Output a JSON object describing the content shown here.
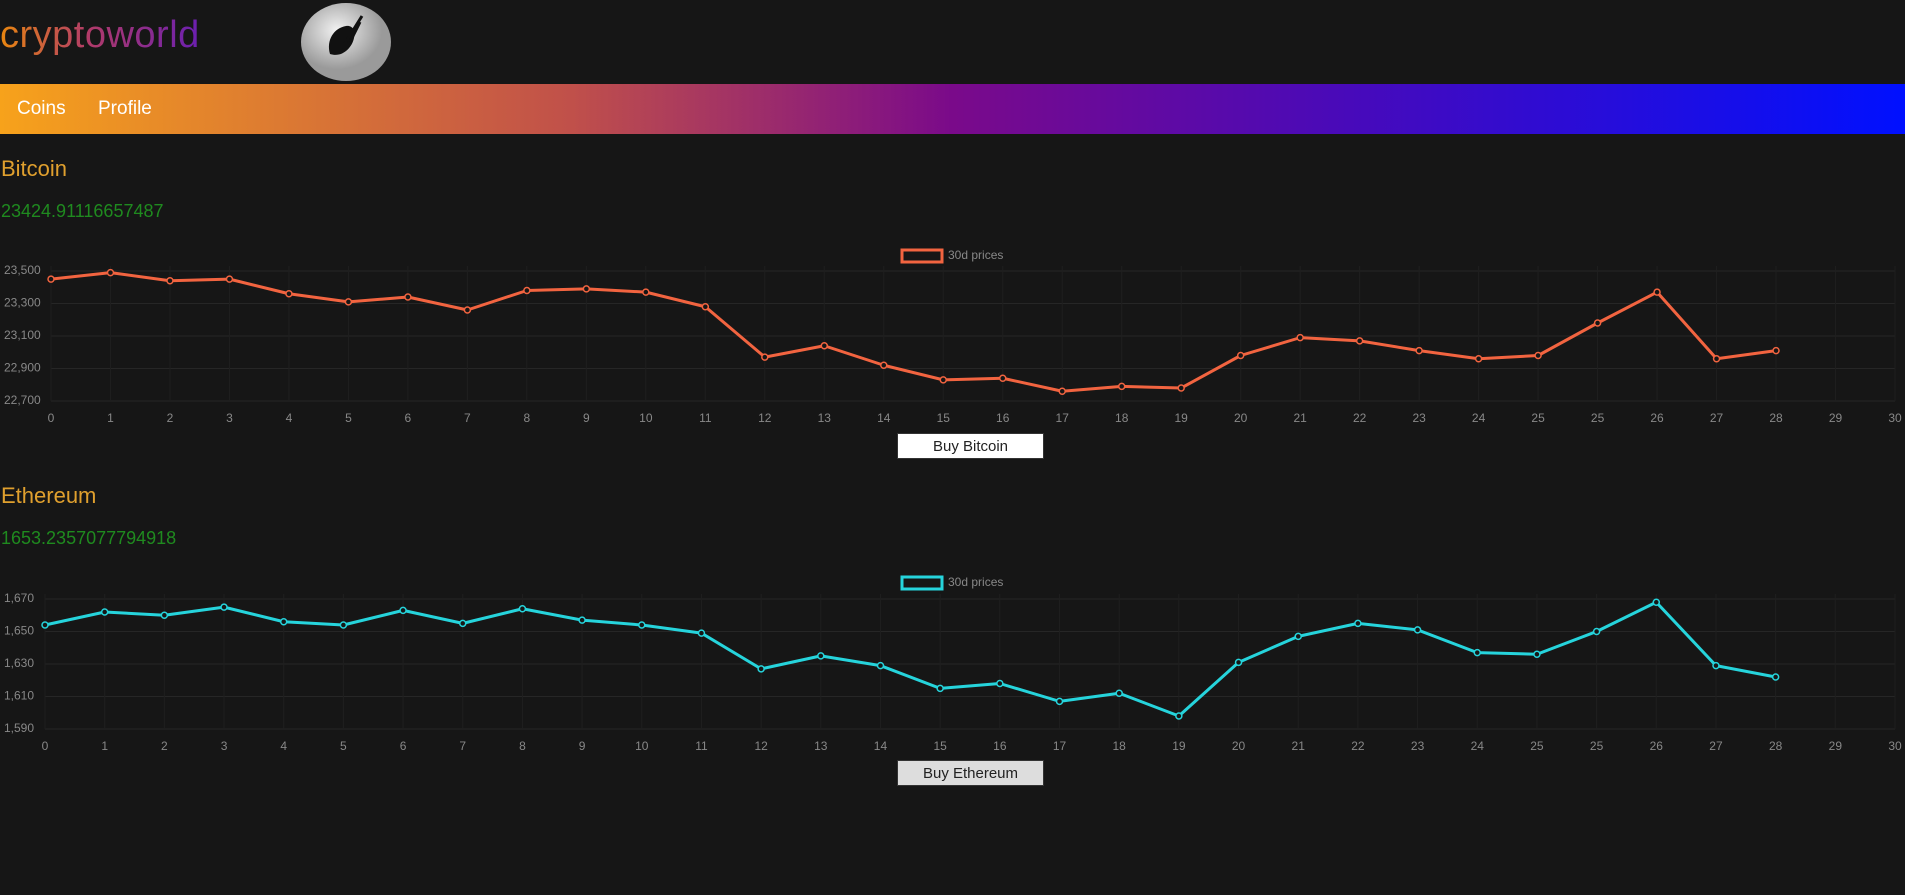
{
  "header": {
    "brand": "cryptoworld"
  },
  "nav": [
    "Coins",
    "Profile"
  ],
  "coins": [
    {
      "name": "Bitcoin",
      "price": "23424.91116657487",
      "button": "Buy Bitcoin"
    },
    {
      "name": "Ethereum",
      "price": "1653.2357077794918",
      "button": "Buy Ethereum"
    }
  ],
  "chart_data": [
    {
      "type": "line",
      "categories": [
        0,
        1,
        2,
        3,
        4,
        5,
        6,
        7,
        8,
        9,
        10,
        11,
        12,
        13,
        14,
        15,
        16,
        17,
        18,
        19,
        20,
        21,
        22,
        23,
        24,
        25,
        25,
        26,
        27,
        28,
        29,
        30
      ],
      "series": [
        {
          "name": "30d prices",
          "color": "#f26440",
          "values": [
            23450,
            23490,
            23440,
            23450,
            23360,
            23310,
            23340,
            23260,
            23380,
            23390,
            23370,
            23280,
            22970,
            23040,
            22920,
            22830,
            22840,
            22760,
            22790,
            22780,
            22980,
            23090,
            23070,
            23010,
            22960,
            22980,
            23180,
            23370,
            22960,
            23010,
            null,
            null
          ]
        }
      ],
      "ylim": [
        22700,
        23500
      ],
      "yticks": [
        {
          "value": 22700,
          "label": "22,700"
        },
        {
          "value": 22900,
          "label": "22,900"
        },
        {
          "value": 23100,
          "label": "23,100"
        },
        {
          "value": 23300,
          "label": "23,300"
        },
        {
          "value": 23500,
          "label": "23,500"
        }
      ],
      "grid": true,
      "legend": "top"
    },
    {
      "type": "line",
      "categories": [
        0,
        1,
        2,
        3,
        4,
        5,
        6,
        7,
        8,
        9,
        10,
        11,
        12,
        13,
        14,
        15,
        16,
        17,
        18,
        19,
        20,
        21,
        22,
        23,
        24,
        25,
        25,
        26,
        27,
        28,
        29,
        30
      ],
      "series": [
        {
          "name": "30d prices",
          "color": "#26d4dc",
          "values": [
            1654,
            1662,
            1660,
            1665,
            1656,
            1654,
            1663,
            1655,
            1664,
            1657,
            1654,
            1649,
            1627,
            1635,
            1629,
            1615,
            1618,
            1607,
            1612,
            1598,
            1631,
            1647,
            1655,
            1651,
            1637,
            1636,
            1650,
            1668,
            1629,
            1622,
            null,
            null
          ]
        }
      ],
      "ylim": [
        1590,
        1670
      ],
      "yticks": [
        {
          "value": 1590,
          "label": "1,590"
        },
        {
          "value": 1610,
          "label": "1,610"
        },
        {
          "value": 1630,
          "label": "1,630"
        },
        {
          "value": 1650,
          "label": "1,650"
        },
        {
          "value": 1670,
          "label": "1,670"
        }
      ],
      "grid": true,
      "legend": "top"
    }
  ]
}
